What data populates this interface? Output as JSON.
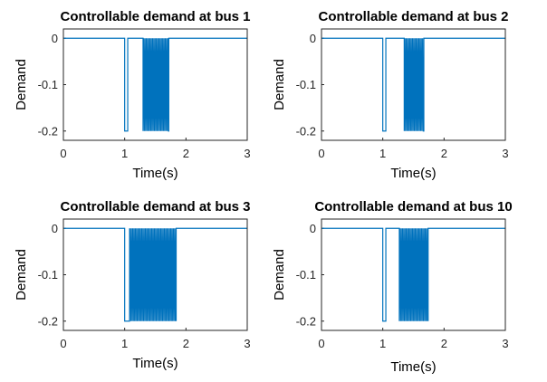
{
  "colors": {
    "series": "#0072BD",
    "axis": "#262626",
    "background": "#ffffff"
  },
  "chart_data": [
    {
      "type": "line",
      "title": "Controllable demand at bus 1",
      "xlabel": "Time(s)",
      "ylabel": "Demand",
      "xlim": [
        0,
        3
      ],
      "ylim": [
        -0.22,
        0.02
      ],
      "xticks": [
        "0",
        "1",
        "2",
        "3"
      ],
      "yticks": [
        "0",
        "-0.1",
        "-0.2"
      ],
      "ytick_values": [
        0,
        -0.1,
        -0.2
      ],
      "grid": false,
      "series": [
        {
          "pulse": {
            "start": 1.0,
            "end": 1.05,
            "value": -0.2
          },
          "switching": {
            "start": 1.3,
            "end": 1.72,
            "low": -0.2,
            "high": 0
          }
        }
      ]
    },
    {
      "type": "line",
      "title": "Controllable demand at bus 2",
      "xlabel": "Time(s)",
      "ylabel": "Demand",
      "xlim": [
        0,
        3
      ],
      "ylim": [
        -0.22,
        0.02
      ],
      "xticks": [
        "0",
        "1",
        "2",
        "3"
      ],
      "yticks": [
        "0",
        "-0.1",
        "-0.2"
      ],
      "ytick_values": [
        0,
        -0.1,
        -0.2
      ],
      "grid": false,
      "series": [
        {
          "pulse": {
            "start": 1.0,
            "end": 1.05,
            "value": -0.2
          },
          "switching": {
            "start": 1.35,
            "end": 1.67,
            "low": -0.2,
            "high": 0
          }
        }
      ]
    },
    {
      "type": "line",
      "title": "Controllable demand at bus 3",
      "xlabel": "Time(s)",
      "ylabel": "Demand",
      "xlim": [
        0,
        3
      ],
      "ylim": [
        -0.22,
        0.02
      ],
      "xticks": [
        "0",
        "1",
        "2",
        "3"
      ],
      "yticks": [
        "0",
        "-0.1",
        "-0.2"
      ],
      "ytick_values": [
        0,
        -0.1,
        -0.2
      ],
      "grid": false,
      "series": [
        {
          "pulse": {
            "start": 1.0,
            "end": 1.08,
            "value": -0.2
          },
          "switching": {
            "start": 1.08,
            "end": 1.84,
            "low": -0.2,
            "high": 0
          }
        }
      ]
    },
    {
      "type": "line",
      "title": "Controllable demand at bus 10",
      "xlabel": "Time(s)",
      "ylabel": "Demand",
      "xlim": [
        0,
        3
      ],
      "ylim": [
        -0.22,
        0.02
      ],
      "xticks": [
        "0",
        "1",
        "2",
        "3"
      ],
      "yticks": [
        "0",
        "-0.1",
        "-0.2"
      ],
      "ytick_values": [
        0,
        -0.1,
        -0.2
      ],
      "grid": false,
      "series": [
        {
          "pulse": {
            "start": 1.0,
            "end": 1.05,
            "value": -0.2
          },
          "switching": {
            "start": 1.27,
            "end": 1.74,
            "low": -0.2,
            "high": 0
          }
        }
      ]
    }
  ]
}
